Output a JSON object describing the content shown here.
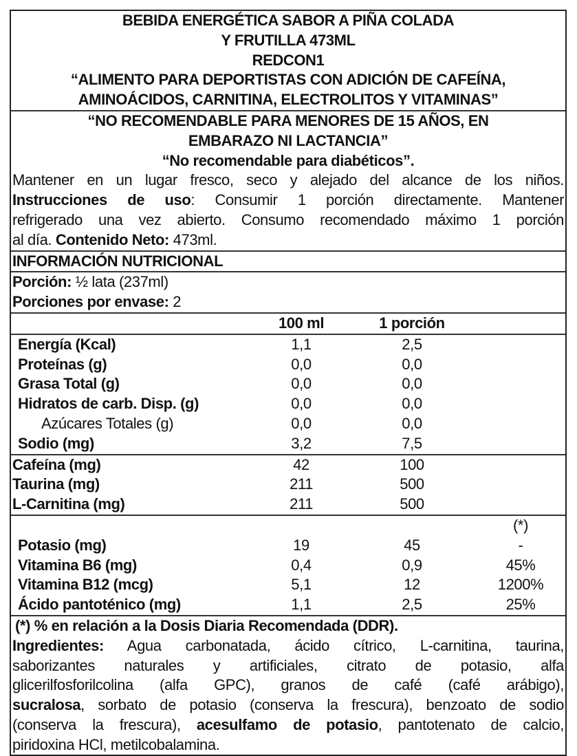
{
  "title_lines": [
    "BEBIDA ENERGÉTICA SABOR A PIÑA COLADA",
    "Y FRUTILLA 473ML",
    "REDCON1",
    "“ALIMENTO PARA DEPORTISTAS CON ADICIÓN DE CAFEÍNA,",
    "AMINOÁCIDOS, CARNITINA, ELECTROLITOS Y VITAMINAS”"
  ],
  "warnings": [
    "“NO RECOMENDABLE PARA MENORES DE 15 AÑOS, EN",
    "EMBARAZO NI LACTANCIA”",
    "“No recomendable para diabéticos”."
  ],
  "storage": {
    "line1": "Mantener en un lugar fresco, seco y alejado del alcance de los niños.",
    "instr_label": "Instrucciones de uso",
    "instr_text": ": Consumir 1 porción directamente. Mantener",
    "line3": "refrigerado una vez abierto. Consumo recomendado máximo 1 porción",
    "line4_pre": "al día. ",
    "net_label": "Contenido Neto:",
    "net_value": " 473ml."
  },
  "nutrition": {
    "title": "INFORMACIÓN NUTRICIONAL",
    "portion_label": "Porción:",
    "portion_value": " ½ lata (237ml)",
    "servings_label": "Porciones por envase:",
    "servings_value": " 2",
    "col_100ml": "100 ml",
    "col_portion": "1 porción",
    "rows_main": [
      {
        "name": "Energía (Kcal)",
        "v100": "1,1",
        "vp": "2,5"
      },
      {
        "name": "Proteínas (g)",
        "v100": "0,0",
        "vp": "0,0"
      },
      {
        "name": "Grasa Total (g)",
        "v100": "0,0",
        "vp": "0,0"
      },
      {
        "name": "Hidratos de carb. Disp. (g)",
        "v100": "0,0",
        "vp": "0,0"
      },
      {
        "name": "Azúcares Totales (g)",
        "v100": "0,0",
        "vp": "0,0",
        "sub": true
      },
      {
        "name": "Sodio (mg)",
        "v100": "3,2",
        "vp": "7,5"
      }
    ],
    "rows_extra": [
      {
        "name": "Cafeína (mg)",
        "v100": "42",
        "vp": "100"
      },
      {
        "name": "Taurina (mg)",
        "v100": "211",
        "vp": "500"
      },
      {
        "name": "L-Carnitina (mg)",
        "v100": "211",
        "vp": "500"
      }
    ],
    "ddr_header": "(*)",
    "rows_vit": [
      {
        "name": "Potasio (mg)",
        "v100": "19",
        "vp": "45",
        "ddr": "-"
      },
      {
        "name": "Vitamina B6 (mg)",
        "v100": "0,4",
        "vp": "0,9",
        "ddr": "45%"
      },
      {
        "name": "Vitamina B12 (mcg)",
        "v100": "5,1",
        "vp": "12",
        "ddr": "1200%"
      },
      {
        "name": "Ácido pantoténico (mg)",
        "v100": "1,1",
        "vp": "2,5",
        "ddr": "25%"
      }
    ],
    "footnote": "(*) % en relación a la Dosis Diaria Recomendada (DDR)."
  },
  "ingredients": {
    "label": "Ingredientes:",
    "l1": " Agua carbonatada, ácido cítrico, L-carnitina, taurina,",
    "l2": "saborizantes naturales y artificiales, citrato de potasio, alfa",
    "l3": "glicerilfosforilcolina (alfa GPC), granos de café (café arábigo),",
    "l4_bold": "sucralosa",
    "l4": ", sorbato de potasio (conserva la frescura), benzoato de sodio",
    "l5_pre": "(conserva la frescura), ",
    "l5_bold": "acesulfamo de potasio",
    "l5": ", pantotenato de calcio,",
    "l6": "piridoxina HCl, metilcobalamina."
  }
}
